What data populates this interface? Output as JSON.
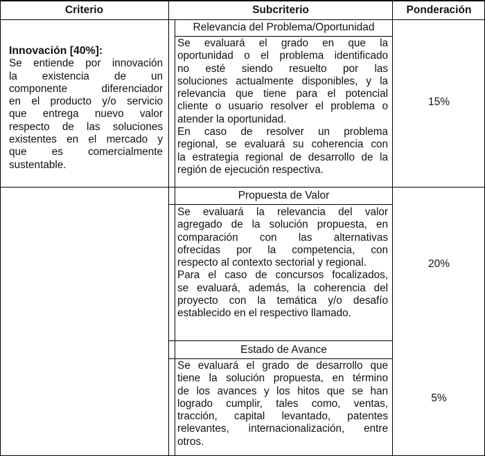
{
  "headers": {
    "criterio": "Criterio",
    "subcriterio": "Subcriterio",
    "ponderacion": "Ponderación"
  },
  "criterio": {
    "title": "Innovación [40%]:",
    "lines": [
      "Se entiende por innovación",
      "la existencia de un",
      "componente diferenciador",
      "en el producto y/o servicio",
      "que entrega nuevo valor",
      "respecto de las soluciones",
      "existentes en el mercado y",
      "que es comercialmente",
      "sustentable."
    ]
  },
  "subcriterios": [
    {
      "title": "Relevancia del Problema/Oportunidad",
      "weight": "15%",
      "lines": [
        "Se evaluará el grado en que la",
        "oportunidad o el problema identificado",
        "no esté siendo resuelto por las",
        "soluciones actualmente disponibles, y la",
        "relevancia que tiene para el potencial",
        "cliente o usuario resolver el problema o",
        "atender la oportunidad.",
        "En caso de resolver un problema",
        "regional, se evaluará su coherencia con",
        "la estrategia regional de desarrollo de la",
        "región de ejecución respectiva."
      ]
    },
    {
      "title": "Propuesta de Valor",
      "weight": "20%",
      "lines": [
        "Se evaluará la relevancia del valor",
        "agregado de la solución propuesta, en",
        "comparación con las alternativas",
        "ofrecidas por la competencia, con",
        "respecto al contexto sectorial y regional.",
        "Para el caso de concursos focalizados,",
        "se evaluará, además, la coherencia del",
        "proyecto con la temática y/o desafío",
        "establecido en el respectivo llamado."
      ]
    },
    {
      "title": "Estado de Avance",
      "weight": "5%",
      "lines": [
        "Se evaluará el grado de desarrollo que",
        "tiene la solución propuesta, en término",
        "de los avances y los hitos que se han",
        "logrado cumplir, tales como, ventas,",
        "tracción, capital levantado, patentes",
        "relevantes, internacionalización, entre",
        "otros."
      ]
    }
  ]
}
